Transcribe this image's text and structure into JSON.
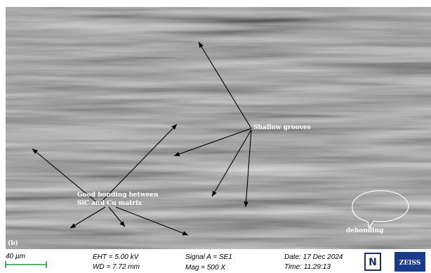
{
  "annotations": {
    "panel": "(b)",
    "grooves": "Shallow grooves",
    "bonding_line1": "Good bonding between",
    "bonding_line2": "SiC and Cu matrix",
    "debonding": "debonding"
  },
  "info_bar": {
    "scale": "40 µm",
    "eht": "EHT =  5.00 kV",
    "wd": "WD = 7.72 mm",
    "signal": "Signal A = SE1",
    "mag": "Mag =    500 X",
    "date": "Date: 17 Dec 2024",
    "time": "Time: 11:29:13",
    "logo_n": "N",
    "logo_zeiss": "ZEISS"
  }
}
